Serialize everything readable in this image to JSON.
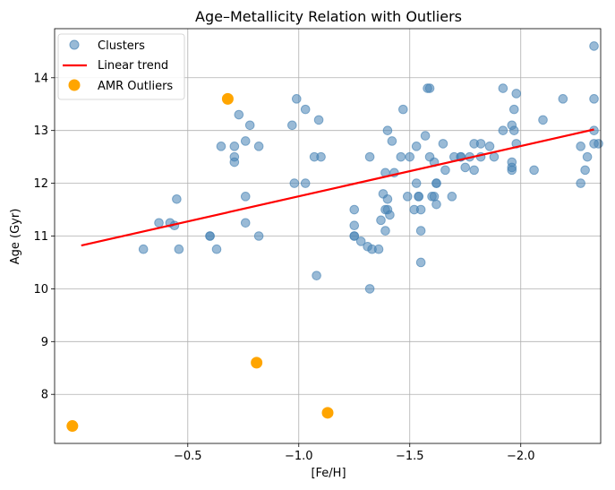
{
  "chart_data": {
    "type": "scatter",
    "title": "Age–Metallicity Relation with Outliers",
    "xlabel": "[Fe/H]",
    "ylabel": "Age (Gyr)",
    "x_inverted": true,
    "xlim": [
      0.1,
      -2.36
    ],
    "ylim": [
      7.07,
      14.93
    ],
    "xticks": [
      -0.5,
      -1.0,
      -1.5,
      -2.0
    ],
    "xtick_labels": [
      "−0.5",
      "−1.0",
      "−1.5",
      "−2.0"
    ],
    "yticks": [
      8,
      9,
      10,
      11,
      12,
      13,
      14
    ],
    "ytick_labels": [
      "8",
      "9",
      "10",
      "11",
      "12",
      "13",
      "14"
    ],
    "grid": true,
    "legend_position": "upper-left",
    "series": [
      {
        "name": "Clusters",
        "kind": "scatter",
        "color": "#4682b4",
        "points": [
          [
            -0.3,
            10.75
          ],
          [
            -0.37,
            11.25
          ],
          [
            -0.42,
            11.25
          ],
          [
            -0.44,
            11.2
          ],
          [
            -0.45,
            11.7
          ],
          [
            -0.46,
            10.75
          ],
          [
            -0.6,
            11.0
          ],
          [
            -0.6,
            11.0
          ],
          [
            -0.63,
            10.75
          ],
          [
            -0.65,
            12.7
          ],
          [
            -0.71,
            12.7
          ],
          [
            -0.71,
            12.5
          ],
          [
            -0.71,
            12.4
          ],
          [
            -0.73,
            13.3
          ],
          [
            -0.76,
            12.8
          ],
          [
            -0.76,
            11.75
          ],
          [
            -0.76,
            11.25
          ],
          [
            -0.78,
            13.1
          ],
          [
            -0.82,
            12.7
          ],
          [
            -0.82,
            11.0
          ],
          [
            -0.97,
            13.1
          ],
          [
            -0.98,
            12.0
          ],
          [
            -0.99,
            13.6
          ],
          [
            -1.03,
            13.4
          ],
          [
            -1.03,
            12.0
          ],
          [
            -1.07,
            12.5
          ],
          [
            -1.08,
            10.25
          ],
          [
            -1.09,
            13.2
          ],
          [
            -1.1,
            12.5
          ],
          [
            -1.25,
            11.5
          ],
          [
            -1.25,
            11.2
          ],
          [
            -1.25,
            11.0
          ],
          [
            -1.25,
            11.0
          ],
          [
            -1.28,
            10.9
          ],
          [
            -1.31,
            10.8
          ],
          [
            -1.32,
            12.5
          ],
          [
            -1.32,
            10.0
          ],
          [
            -1.33,
            10.75
          ],
          [
            -1.36,
            10.75
          ],
          [
            -1.37,
            11.3
          ],
          [
            -1.38,
            11.8
          ],
          [
            -1.39,
            12.2
          ],
          [
            -1.39,
            11.1
          ],
          [
            -1.39,
            11.5
          ],
          [
            -1.4,
            13.0
          ],
          [
            -1.4,
            11.7
          ],
          [
            -1.4,
            11.5
          ],
          [
            -1.41,
            11.4
          ],
          [
            -1.42,
            12.8
          ],
          [
            -1.43,
            12.2
          ],
          [
            -1.46,
            12.5
          ],
          [
            -1.47,
            13.4
          ],
          [
            -1.49,
            11.75
          ],
          [
            -1.5,
            12.5
          ],
          [
            -1.52,
            11.5
          ],
          [
            -1.53,
            12.7
          ],
          [
            -1.53,
            12.0
          ],
          [
            -1.54,
            11.75
          ],
          [
            -1.54,
            11.75
          ],
          [
            -1.55,
            11.5
          ],
          [
            -1.55,
            11.1
          ],
          [
            -1.55,
            10.5
          ],
          [
            -1.57,
            12.9
          ],
          [
            -1.58,
            13.8
          ],
          [
            -1.59,
            13.8
          ],
          [
            -1.59,
            12.5
          ],
          [
            -1.6,
            11.75
          ],
          [
            -1.61,
            12.4
          ],
          [
            -1.61,
            11.75
          ],
          [
            -1.62,
            12.0
          ],
          [
            -1.62,
            11.6
          ],
          [
            -1.62,
            12.0
          ],
          [
            -1.65,
            12.75
          ],
          [
            -1.66,
            12.25
          ],
          [
            -1.69,
            11.75
          ],
          [
            -1.7,
            12.5
          ],
          [
            -1.73,
            12.5
          ],
          [
            -1.73,
            12.5
          ],
          [
            -1.75,
            12.3
          ],
          [
            -1.77,
            12.5
          ],
          [
            -1.79,
            12.75
          ],
          [
            -1.79,
            12.25
          ],
          [
            -1.82,
            12.75
          ],
          [
            -1.82,
            12.5
          ],
          [
            -1.86,
            12.7
          ],
          [
            -1.88,
            12.5
          ],
          [
            -1.92,
            13.8
          ],
          [
            -1.92,
            13.0
          ],
          [
            -1.96,
            12.3
          ],
          [
            -1.96,
            12.25
          ],
          [
            -1.96,
            13.1
          ],
          [
            -1.96,
            12.4
          ],
          [
            -1.97,
            13.4
          ],
          [
            -1.97,
            13.0
          ],
          [
            -1.98,
            13.7
          ],
          [
            -1.98,
            12.75
          ],
          [
            -2.06,
            12.25
          ],
          [
            -2.1,
            13.2
          ],
          [
            -2.19,
            13.6
          ],
          [
            -2.27,
            12.7
          ],
          [
            -2.27,
            12.0
          ],
          [
            -2.29,
            12.25
          ],
          [
            -2.3,
            12.5
          ],
          [
            -2.33,
            14.6
          ],
          [
            -2.33,
            13.6
          ],
          [
            -2.33,
            13.0
          ],
          [
            -2.33,
            12.75
          ],
          [
            -2.35,
            12.75
          ]
        ]
      },
      {
        "name": "Linear trend",
        "kind": "line",
        "color": "#ff0000",
        "points": [
          [
            -0.02,
            10.82
          ],
          [
            -2.33,
            13.02
          ]
        ]
      },
      {
        "name": "AMR Outliers",
        "kind": "scatter",
        "color": "#ffa500",
        "points": [
          [
            -0.68,
            13.6
          ],
          [
            -0.81,
            8.6
          ],
          [
            -1.13,
            7.65
          ],
          [
            0.02,
            7.4
          ]
        ]
      }
    ]
  }
}
